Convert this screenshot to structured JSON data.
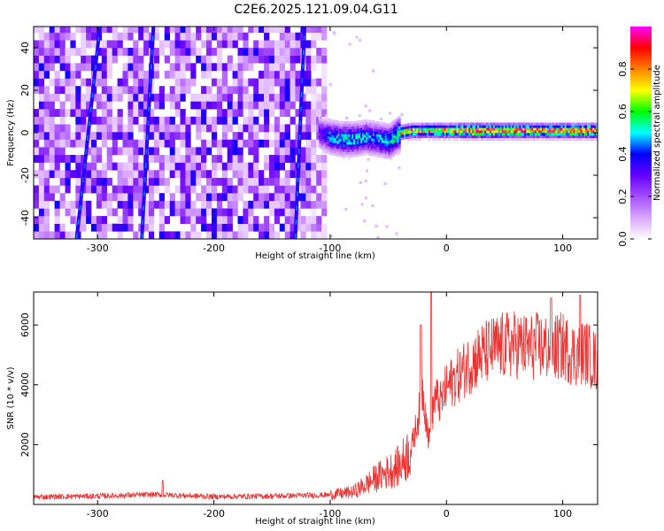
{
  "figure_title": "C2E6.2025.121.09.04.G11",
  "chart_data": [
    {
      "type": "heatmap",
      "title": "C2E6.2025.121.09.04.G11",
      "xlabel": "Height of straight line (km)",
      "ylabel": "Frequency (Hz)",
      "xlim": [
        -355,
        130
      ],
      "ylim": [
        -50,
        50
      ],
      "xticks": [
        -300,
        -200,
        -100,
        0,
        100
      ],
      "yticks": [
        -40,
        -20,
        0,
        20,
        40
      ],
      "grid": false,
      "colorbar": {
        "label": "Normalized spectral amplitude",
        "range": [
          0,
          1
        ],
        "ticks": [
          "0.0",
          "0.2",
          "0.4",
          "0.6",
          "0.8"
        ],
        "colormap": [
          "#ffffff",
          "#d9a6ff",
          "#a64dff",
          "#6600ff",
          "#0000ff",
          "#00ffff",
          "#00ff00",
          "#ffff00",
          "#ff8000",
          "#ff0000",
          "#ff00ff"
        ]
      },
      "features": {
        "noise_region_x": [
          -355,
          -105
        ],
        "tone_start_x": -110,
        "tone_frequency_hz": [
          [
            -110,
            0
          ],
          [
            -100,
            -2
          ],
          [
            -90,
            -3
          ],
          [
            -80,
            -3
          ],
          [
            -70,
            -2
          ],
          [
            -60,
            -3
          ],
          [
            -50,
            -4
          ],
          [
            -40,
            0
          ],
          [
            -30,
            1
          ],
          [
            -20,
            1
          ],
          [
            -10,
            1
          ],
          [
            0,
            1
          ],
          [
            20,
            1
          ],
          [
            40,
            1
          ],
          [
            60,
            1
          ],
          [
            80,
            1
          ],
          [
            100,
            1
          ],
          [
            130,
            1
          ]
        ],
        "tone_amplitude": [
          [
            -110,
            0.3
          ],
          [
            -100,
            0.45
          ],
          [
            -90,
            0.5
          ],
          [
            -80,
            0.5
          ],
          [
            -70,
            0.45
          ],
          [
            -60,
            0.45
          ],
          [
            -50,
            0.5
          ],
          [
            -40,
            0.6
          ],
          [
            -30,
            0.65
          ],
          [
            -20,
            0.65
          ],
          [
            -10,
            0.7
          ],
          [
            0,
            0.7
          ],
          [
            20,
            0.85
          ],
          [
            40,
            0.85
          ],
          [
            60,
            0.8
          ],
          [
            80,
            0.75
          ],
          [
            100,
            0.8
          ],
          [
            130,
            0.8
          ]
        ],
        "streaks": [
          {
            "x_bottom": -318,
            "x_top": -298
          },
          {
            "x_bottom": -262,
            "x_top": -252
          },
          {
            "x_bottom": -130,
            "x_top": -122
          }
        ]
      }
    },
    {
      "type": "line",
      "xlabel": "Height of straight line (km)",
      "ylabel": "SNR (10 * v/v)",
      "xlim": [
        -355,
        130
      ],
      "ylim": [
        0,
        7100
      ],
      "xticks": [
        -300,
        -200,
        -100,
        0,
        100
      ],
      "yticks": [
        2000,
        4000,
        6000
      ],
      "grid": false,
      "line_color": "#ee3333",
      "series": [
        {
          "x": [
            -355,
            -300,
            -250,
            -200,
            -150,
            -100,
            -80,
            -70,
            -60,
            -50,
            -40,
            -30,
            -25,
            -20,
            -15,
            -10,
            -5,
            0,
            10,
            20,
            30,
            40,
            50,
            60,
            70,
            80,
            90,
            100,
            110,
            120,
            130
          ],
          "y": [
            250,
            280,
            330,
            260,
            280,
            320,
            420,
            650,
            900,
            1100,
            1300,
            1900,
            2800,
            3800,
            2100,
            3600,
            3400,
            3900,
            4300,
            4700,
            5000,
            5200,
            5300,
            5350,
            5250,
            5300,
            5200,
            5300,
            5000,
            5100,
            4700
          ]
        }
      ],
      "spikes": [
        {
          "x": -244,
          "y": 800
        },
        {
          "x": -22,
          "y": 6000
        },
        {
          "x": -13,
          "y": 7100
        },
        {
          "x": 90,
          "y": 6900
        },
        {
          "x": 115,
          "y": 7000
        }
      ]
    }
  ]
}
